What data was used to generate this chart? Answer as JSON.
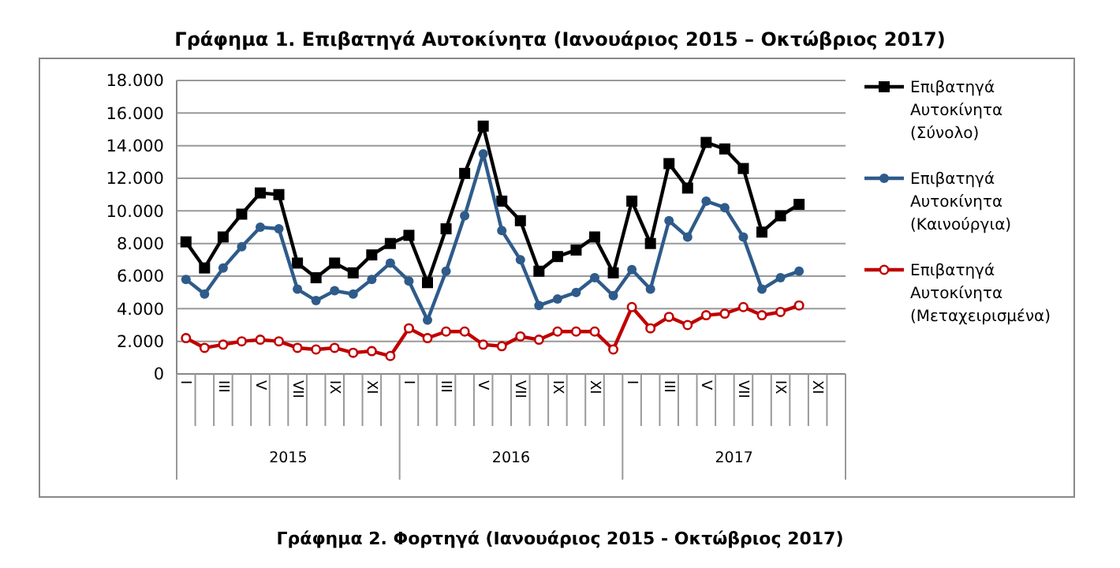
{
  "chart_data": {
    "type": "line",
    "title": "Γράφημα 1. Επιβατηγά Αυτοκίνητα (Ιανουάριος 2015 – Οκτώβριος 2017)",
    "categories": [
      "I",
      null,
      "III",
      null,
      "V",
      null,
      "VII",
      null,
      "IX",
      null,
      "XI",
      null,
      "I",
      null,
      "III",
      null,
      "V",
      null,
      "VII",
      null,
      "IX",
      null,
      "XI",
      null,
      "I",
      null,
      "III",
      null,
      "V",
      null,
      "VII",
      null,
      "IX",
      null,
      "XI",
      null
    ],
    "series": [
      {
        "name": "Επιβατηγά Αυτοκίνητα (Σύνολο)",
        "color": "#000000",
        "marker": "square",
        "values": [
          8100,
          6500,
          8400,
          9800,
          11100,
          11000,
          6800,
          5900,
          6800,
          6200,
          7300,
          8000,
          8500,
          5600,
          8900,
          12300,
          15200,
          10600,
          9400,
          6300,
          7200,
          7600,
          8400,
          6200,
          10600,
          8000,
          12900,
          11400,
          14200,
          13800,
          12600,
          8700,
          9700,
          10400,
          null,
          null
        ]
      },
      {
        "name": "Επιβατηγά Αυτοκίνητα (Καινούργια)",
        "color": "#2e5b8a",
        "marker": "circle",
        "values": [
          5800,
          4900,
          6500,
          7800,
          9000,
          8900,
          5200,
          4500,
          5100,
          4900,
          5800,
          6800,
          5700,
          3300,
          6300,
          9700,
          13500,
          8800,
          7000,
          4200,
          4600,
          5000,
          5900,
          4800,
          6400,
          5200,
          9400,
          8400,
          10600,
          10200,
          8400,
          5200,
          5900,
          6300,
          null,
          null
        ]
      },
      {
        "name": "Επιβατηγά Αυτοκίνητα (Μεταχειρισμένα)",
        "color": "#c00000",
        "marker": "open-circle",
        "values": [
          2200,
          1600,
          1800,
          2000,
          2100,
          2000,
          1600,
          1500,
          1600,
          1300,
          1400,
          1100,
          2800,
          2200,
          2600,
          2600,
          1800,
          1700,
          2300,
          2100,
          2600,
          2600,
          2600,
          1500,
          4100,
          2800,
          3500,
          3000,
          3600,
          3700,
          4100,
          3600,
          3800,
          4200,
          null,
          null
        ]
      }
    ],
    "ylim": [
      0,
      18000
    ],
    "yticks": [
      0,
      {
        "value": 2000,
        "label": "2.000"
      },
      {
        "value": 4000,
        "label": "4.000"
      },
      {
        "value": 6000,
        "label": "6.000"
      },
      {
        "value": 8000,
        "label": "8.000"
      },
      {
        "value": 10000,
        "label": "10.000"
      },
      {
        "value": 12000,
        "label": "12.000"
      },
      {
        "value": 14000,
        "label": "14.000"
      },
      {
        "value": 16000,
        "label": "16.000"
      },
      {
        "value": 18000,
        "label": "18.000"
      }
    ],
    "grid": "y",
    "legend": "right",
    "annotations": [
      "2015",
      "2016",
      "2017",
      "Γράφημα 2. Φορτηγά (Ιανουάριος 2015 - Οκτώβριος 2017)"
    ]
  }
}
